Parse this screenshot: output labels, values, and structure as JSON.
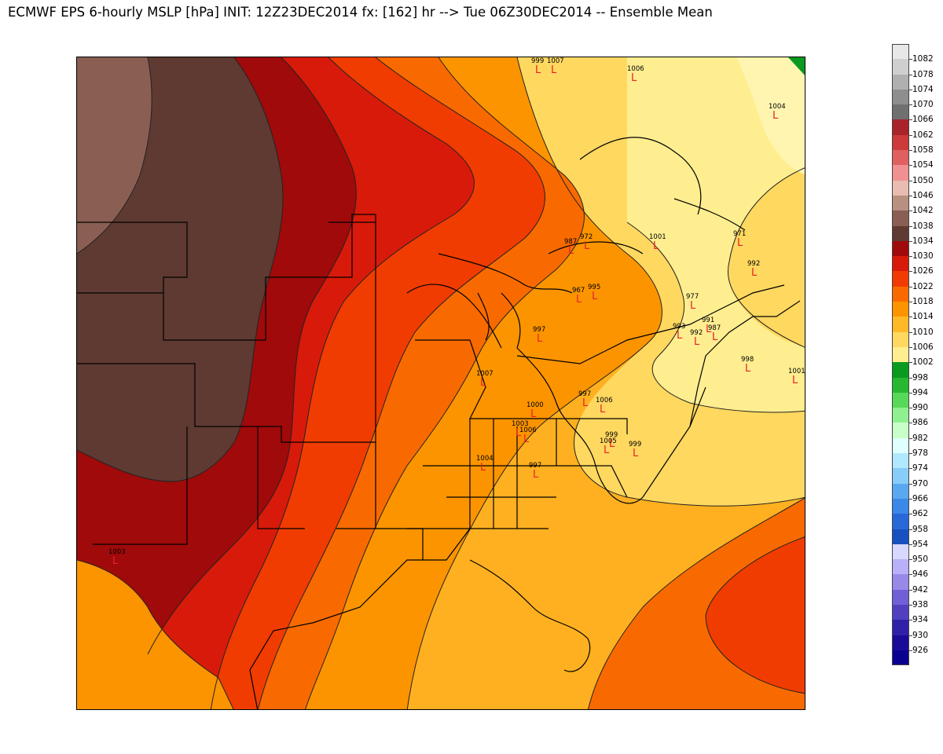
{
  "title": "ECMWF EPS 6-hourly MSLP [hPa] INIT: 12Z23DEC2014 fx: [162] hr --> Tue 06Z30DEC2014 -- Ensemble Mean",
  "colorbar": [
    {
      "label": "1082",
      "color": "#e8e8e8"
    },
    {
      "label": "1078",
      "color": "#cfcfcf"
    },
    {
      "label": "1074",
      "color": "#b0b0b0"
    },
    {
      "label": "1070",
      "color": "#8e8e8e"
    },
    {
      "label": "1066",
      "color": "#707070"
    },
    {
      "label": "1062",
      "color": "#a8232a"
    },
    {
      "label": "1058",
      "color": "#cc3a3a"
    },
    {
      "label": "1054",
      "color": "#e06060"
    },
    {
      "label": "1050",
      "color": "#f09090"
    },
    {
      "label": "1046",
      "color": "#e8bcb0"
    },
    {
      "label": "1042",
      "color": "#b89080"
    },
    {
      "label": "1038",
      "color": "#8a5e52"
    },
    {
      "label": "1034",
      "color": "#5e3a32"
    },
    {
      "label": "1030",
      "color": "#a00a0a"
    },
    {
      "label": "1026",
      "color": "#d81a0a"
    },
    {
      "label": "1022",
      "color": "#f03c00"
    },
    {
      "label": "1018",
      "color": "#f86a00"
    },
    {
      "label": "1014",
      "color": "#fc9400"
    },
    {
      "label": "1010",
      "color": "#ffb828"
    },
    {
      "label": "1006",
      "color": "#ffd860"
    },
    {
      "label": "1002",
      "color": "#ffee90"
    },
    {
      "label": "998",
      "color": "#0a9a20"
    },
    {
      "label": "994",
      "color": "#28b830"
    },
    {
      "label": "990",
      "color": "#58d858"
    },
    {
      "label": "986",
      "color": "#90f090"
    },
    {
      "label": "982",
      "color": "#c8ffc8"
    },
    {
      "label": "978",
      "color": "#e0ffff"
    },
    {
      "label": "974",
      "color": "#b0e8ff"
    },
    {
      "label": "970",
      "color": "#88ccf8"
    },
    {
      "label": "966",
      "color": "#5aa8f0"
    },
    {
      "label": "962",
      "color": "#3a88e8"
    },
    {
      "label": "958",
      "color": "#2868d8"
    },
    {
      "label": "954",
      "color": "#1850c0"
    },
    {
      "label": "950",
      "color": "#d8d8ff"
    },
    {
      "label": "946",
      "color": "#b8b0f8"
    },
    {
      "label": "942",
      "color": "#9888e8"
    },
    {
      "label": "938",
      "color": "#7060d8"
    },
    {
      "label": "934",
      "color": "#5040c0"
    },
    {
      "label": "930",
      "color": "#3020a8"
    },
    {
      "label": "926",
      "color": "#1a0a98"
    },
    {
      "label": "",
      "color": "#0a0090"
    }
  ],
  "low_centers": [
    {
      "value": "999",
      "marker": "L"
    },
    {
      "value": "1007",
      "marker": "L"
    },
    {
      "value": "1006",
      "marker": "L"
    },
    {
      "value": "1004",
      "marker": "L"
    },
    {
      "value": "971",
      "marker": "L"
    },
    {
      "value": "992",
      "marker": "L"
    },
    {
      "value": "987",
      "marker": "L"
    },
    {
      "value": "972",
      "marker": "L"
    },
    {
      "value": "1001",
      "marker": "L"
    },
    {
      "value": "967",
      "marker": "L"
    },
    {
      "value": "995",
      "marker": "L"
    },
    {
      "value": "977",
      "marker": "L"
    },
    {
      "value": "993",
      "marker": "L"
    },
    {
      "value": "991",
      "marker": "L"
    },
    {
      "value": "992",
      "marker": "L"
    },
    {
      "value": "987",
      "marker": "L"
    },
    {
      "value": "997",
      "marker": "L"
    },
    {
      "value": "998",
      "marker": "L"
    },
    {
      "value": "1001",
      "marker": "L"
    },
    {
      "value": "1007",
      "marker": "L"
    },
    {
      "value": "997",
      "marker": "L"
    },
    {
      "value": "1006",
      "marker": "L"
    },
    {
      "value": "1000",
      "marker": "L"
    },
    {
      "value": "1003",
      "marker": "L"
    },
    {
      "value": "1006",
      "marker": "L"
    },
    {
      "value": "999",
      "marker": "L"
    },
    {
      "value": "1005",
      "marker": "L"
    },
    {
      "value": "999",
      "marker": "L"
    },
    {
      "value": "1004",
      "marker": "L"
    },
    {
      "value": "997",
      "marker": "L"
    },
    {
      "value": "1003",
      "marker": "L"
    }
  ]
}
